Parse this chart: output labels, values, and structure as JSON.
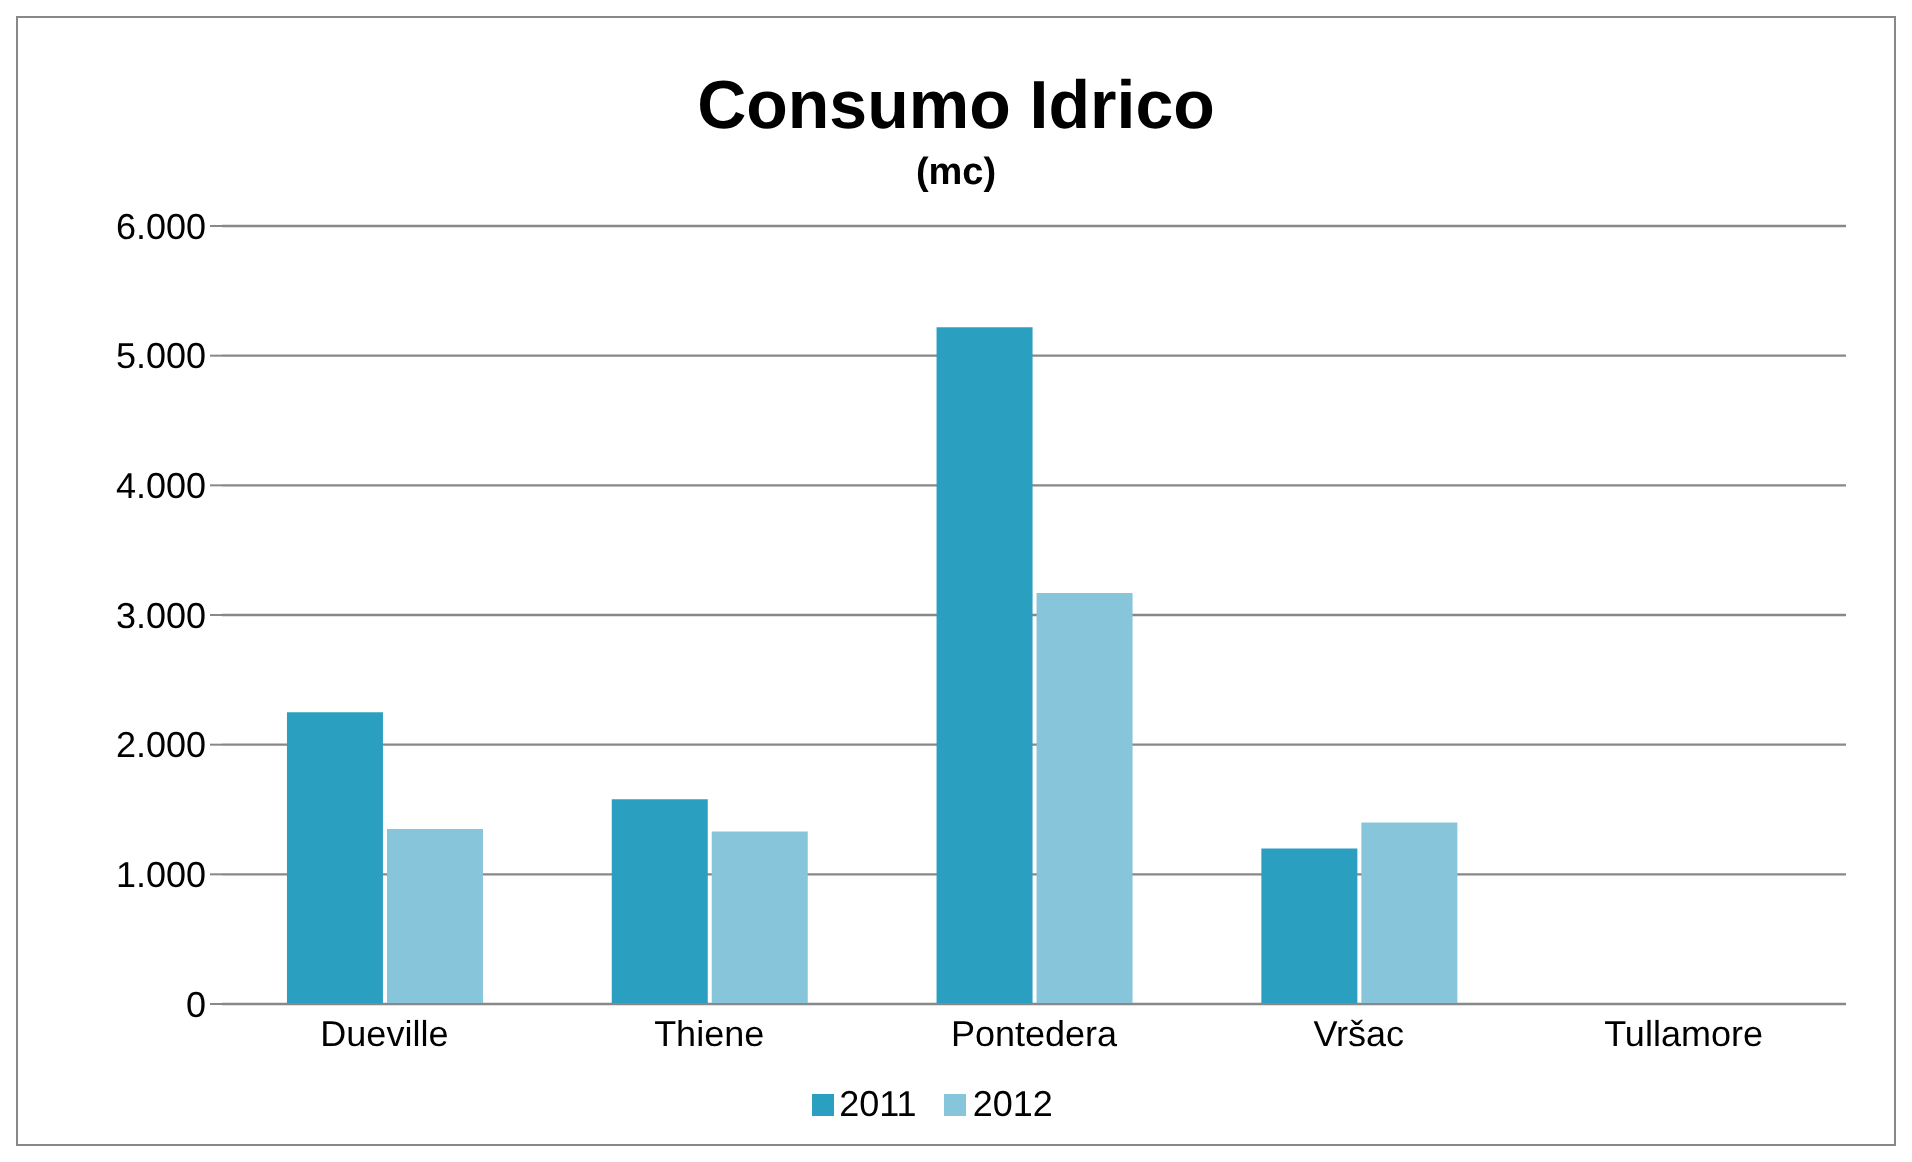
{
  "chart_data": {
    "type": "bar",
    "title": "Consumo Idrico",
    "subtitle": "(mc)",
    "categories": [
      "Dueville",
      "Thiene",
      "Pontedera",
      "Vršac",
      "Tullamore"
    ],
    "series": [
      {
        "name": "2011",
        "color": "#2b9fbf",
        "values": [
          2250,
          1580,
          5220,
          1200,
          null
        ]
      },
      {
        "name": "2012",
        "color": "#86c5da",
        "values": [
          1350,
          1330,
          3170,
          1400,
          null
        ]
      }
    ],
    "ylim": [
      0,
      6000
    ],
    "yticks": [
      {
        "value": 0,
        "label": "0"
      },
      {
        "value": 1000,
        "label": "1.000"
      },
      {
        "value": 2000,
        "label": "2.000"
      },
      {
        "value": 3000,
        "label": "3.000"
      },
      {
        "value": 4000,
        "label": "4.000"
      },
      {
        "value": 5000,
        "label": "5.000"
      },
      {
        "value": 6000,
        "label": "6.000"
      }
    ],
    "grid": "y",
    "legend": "bottom"
  }
}
